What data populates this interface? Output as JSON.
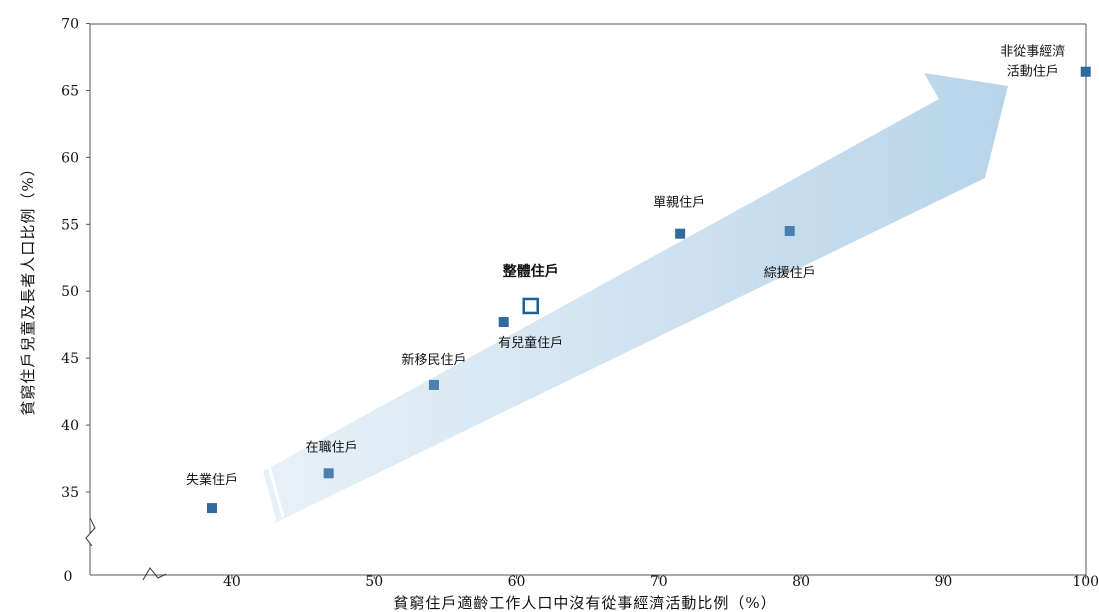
{
  "chart_data": {
    "type": "scatter",
    "title": "",
    "xlabel": "貧窮住戶適齡工作人口中沒有從事經濟活動比例（%）",
    "ylabel": "貧窮住戶兒童及長者人口比例（%）",
    "x_axis": {
      "range": [
        30,
        100
      ],
      "ticks": [
        40,
        50,
        60,
        70,
        80,
        90,
        100
      ],
      "origin_label": "0",
      "broken": true
    },
    "y_axis": {
      "range": [
        30,
        70
      ],
      "ticks": [
        35,
        40,
        45,
        50,
        55,
        60,
        65,
        70
      ],
      "broken": true
    },
    "grid": false,
    "colors": {
      "arrow": "#bdd7eb",
      "point": "#2f6a9f",
      "point_light": "#4a7fb0",
      "overall": "#1f5f96"
    },
    "annotation": "arrow indicating increasing trend",
    "points": [
      {
        "name": "失業住戶",
        "x": 38.6,
        "y": 33.8,
        "style": "dark"
      },
      {
        "name": "在職住戶",
        "x": 46.8,
        "y": 36.4,
        "style": "light"
      },
      {
        "name": "新移民住戶",
        "x": 54.2,
        "y": 43.0,
        "style": "light"
      },
      {
        "name": "有兒童住戶",
        "x": 59.1,
        "y": 47.7,
        "style": "dark"
      },
      {
        "name": "整體住戶",
        "x": 61.0,
        "y": 48.9,
        "style": "overall"
      },
      {
        "name": "單親住戶",
        "x": 71.5,
        "y": 54.3,
        "style": "dark"
      },
      {
        "name": "綜援住戶",
        "x": 79.2,
        "y": 54.5,
        "style": "light"
      },
      {
        "name": "非從事經濟活動住戶",
        "x": 100.0,
        "y": 66.4,
        "style": "dark"
      }
    ]
  }
}
